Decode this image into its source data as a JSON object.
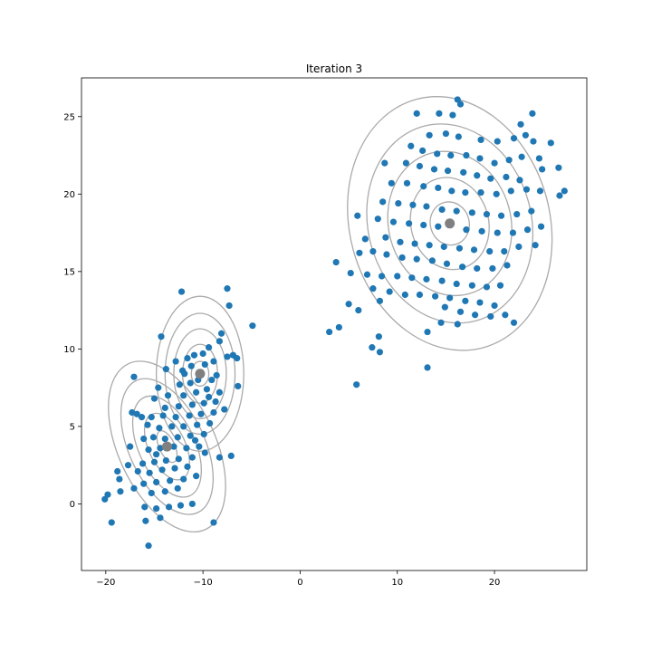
{
  "chart_data": {
    "type": "scatter",
    "title": "Iteration 3",
    "xlabel": "",
    "ylabel": "",
    "xlim": [
      -22.5,
      29.5
    ],
    "ylim": [
      -4.3,
      27.5
    ],
    "xticks": [
      -20,
      -10,
      0,
      10,
      20
    ],
    "yticks": [
      0,
      5,
      10,
      15,
      20,
      25
    ],
    "grid": false,
    "legend": "none",
    "colors": {
      "points": "#1f77b4",
      "centers": "#808080",
      "contours": "#aaaaaa"
    },
    "centers": [
      {
        "x": -10.3,
        "y": 8.4
      },
      {
        "x": -13.7,
        "y": 3.7
      },
      {
        "x": 15.4,
        "y": 18.1
      }
    ],
    "contour_sets": [
      {
        "cx": -10.3,
        "cy": 8.4,
        "rx_steps": [
          0.9,
          1.8,
          2.7,
          3.6,
          4.5
        ],
        "ry_steps": [
          0.8,
          1.9,
          2.9,
          3.9,
          5.0
        ],
        "rot_deg": 0
      },
      {
        "cx": -13.7,
        "cy": 3.7,
        "rx_steps": [
          0.8,
          1.9,
          2.9,
          3.9,
          5.0
        ],
        "ry_steps": [
          1.1,
          2.3,
          3.5,
          4.7,
          5.9
        ],
        "rot_deg": 25
      },
      {
        "cx": 15.4,
        "cy": 18.1,
        "rx_steps": [
          2.0,
          4.0,
          6.3,
          8.4,
          10.3
        ],
        "ry_steps": [
          1.4,
          3.0,
          4.7,
          6.5,
          8.3
        ],
        "rot_deg": 15
      }
    ],
    "series": [
      {
        "points": [
          [
            -7.5,
            13.9
          ],
          [
            -7.3,
            12.8
          ],
          [
            -12.2,
            13.7
          ],
          [
            -4.9,
            11.5
          ],
          [
            -14.3,
            10.8
          ],
          [
            -17.1,
            8.2
          ],
          [
            -8.1,
            11.0
          ],
          [
            -8.3,
            10.5
          ],
          [
            -9.4,
            10.1
          ],
          [
            -10.0,
            9.7
          ],
          [
            -10.9,
            9.6
          ],
          [
            -11.6,
            9.4
          ],
          [
            -12.8,
            9.2
          ],
          [
            -7.5,
            9.5
          ],
          [
            -6.9,
            9.6
          ],
          [
            -6.5,
            9.4
          ],
          [
            -8.9,
            9.2
          ],
          [
            -9.8,
            9.0
          ],
          [
            -11.2,
            8.9
          ],
          [
            -12.1,
            8.6
          ],
          [
            -13.8,
            8.7
          ],
          [
            -8.6,
            8.3
          ],
          [
            -9.1,
            8.0
          ],
          [
            -10.5,
            8.0
          ],
          [
            -11.3,
            7.8
          ],
          [
            -12.4,
            7.7
          ],
          [
            -14.6,
            7.5
          ],
          [
            -6.4,
            7.6
          ],
          [
            -8.3,
            7.2
          ],
          [
            -9.6,
            7.4
          ],
          [
            -10.7,
            7.2
          ],
          [
            -12.0,
            7.0
          ],
          [
            -13.6,
            7.0
          ],
          [
            -15.0,
            6.8
          ],
          [
            -8.7,
            6.6
          ],
          [
            -9.9,
            6.5
          ],
          [
            -11.1,
            6.4
          ],
          [
            -12.5,
            6.3
          ],
          [
            -13.9,
            6.2
          ],
          [
            -7.8,
            6.1
          ],
          [
            -8.9,
            5.9
          ],
          [
            -10.2,
            5.8
          ],
          [
            -11.4,
            5.7
          ],
          [
            -12.8,
            5.6
          ],
          [
            -14.1,
            5.7
          ],
          [
            -15.3,
            5.6
          ],
          [
            -16.3,
            5.6
          ],
          [
            -16.8,
            5.8
          ],
          [
            -17.3,
            5.9
          ],
          [
            -9.3,
            5.2
          ],
          [
            -10.6,
            5.1
          ],
          [
            -12.0,
            5.0
          ],
          [
            -13.2,
            5.0
          ],
          [
            -14.5,
            4.9
          ],
          [
            -15.7,
            5.1
          ],
          [
            -9.9,
            4.5
          ],
          [
            -11.3,
            4.4
          ],
          [
            -12.6,
            4.3
          ],
          [
            -13.9,
            4.2
          ],
          [
            -15.1,
            4.3
          ],
          [
            -16.1,
            4.2
          ],
          [
            -10.4,
            3.7
          ],
          [
            -11.7,
            3.6
          ],
          [
            -13.0,
            3.7
          ],
          [
            -14.4,
            3.6
          ],
          [
            -15.6,
            3.5
          ],
          [
            -17.5,
            3.7
          ],
          [
            -9.8,
            3.3
          ],
          [
            -11.1,
            3.0
          ],
          [
            -12.5,
            2.9
          ],
          [
            -13.8,
            2.8
          ],
          [
            -15.0,
            2.7
          ],
          [
            -16.2,
            2.6
          ],
          [
            -8.3,
            3.0
          ],
          [
            -7.1,
            3.1
          ],
          [
            -11.6,
            2.4
          ],
          [
            -12.9,
            2.3
          ],
          [
            -14.2,
            2.2
          ],
          [
            -15.5,
            2.0
          ],
          [
            -16.7,
            2.1
          ],
          [
            -17.7,
            2.5
          ],
          [
            -18.8,
            2.1
          ],
          [
            -10.7,
            1.8
          ],
          [
            -12.0,
            1.6
          ],
          [
            -13.4,
            1.5
          ],
          [
            -14.8,
            1.4
          ],
          [
            -16.1,
            1.3
          ],
          [
            -18.6,
            1.6
          ],
          [
            -12.6,
            1.0
          ],
          [
            -13.9,
            0.8
          ],
          [
            -15.3,
            0.7
          ],
          [
            -17.1,
            1.0
          ],
          [
            -18.5,
            0.8
          ],
          [
            -19.8,
            0.6
          ],
          [
            -20.1,
            0.3
          ],
          [
            -11.1,
            0.0
          ],
          [
            -12.3,
            -0.1
          ],
          [
            -13.5,
            -0.2
          ],
          [
            -14.8,
            -0.3
          ],
          [
            -16.0,
            -0.2
          ],
          [
            -15.9,
            -1.1
          ],
          [
            -14.4,
            -0.9
          ],
          [
            -19.4,
            -1.2
          ],
          [
            -8.9,
            -1.2
          ],
          [
            -15.6,
            -2.7
          ],
          [
            -11.9,
            8.4
          ],
          [
            -9.4,
            6.9
          ],
          [
            -10.8,
            4.1
          ],
          [
            -14.8,
            3.2
          ]
        ]
      },
      {
        "points": [
          [
            16.2,
            26.1
          ],
          [
            16.5,
            25.8
          ],
          [
            12.0,
            25.2
          ],
          [
            14.3,
            25.2
          ],
          [
            15.7,
            25.1
          ],
          [
            22.7,
            24.5
          ],
          [
            23.9,
            25.2
          ],
          [
            13.3,
            23.8
          ],
          [
            15.0,
            23.9
          ],
          [
            16.3,
            23.7
          ],
          [
            18.6,
            23.5
          ],
          [
            20.3,
            23.4
          ],
          [
            22.0,
            23.6
          ],
          [
            23.2,
            23.8
          ],
          [
            24.0,
            23.4
          ],
          [
            25.8,
            23.3
          ],
          [
            11.4,
            23.1
          ],
          [
            12.6,
            22.8
          ],
          [
            14.1,
            22.6
          ],
          [
            15.5,
            22.5
          ],
          [
            17.1,
            22.5
          ],
          [
            18.5,
            22.3
          ],
          [
            20.0,
            22.0
          ],
          [
            21.5,
            22.2
          ],
          [
            22.8,
            22.4
          ],
          [
            24.6,
            22.3
          ],
          [
            8.7,
            22.0
          ],
          [
            10.9,
            22.0
          ],
          [
            12.3,
            21.8
          ],
          [
            13.8,
            21.6
          ],
          [
            15.2,
            21.5
          ],
          [
            16.8,
            21.4
          ],
          [
            18.2,
            21.2
          ],
          [
            19.6,
            21.0
          ],
          [
            21.2,
            21.1
          ],
          [
            22.6,
            20.9
          ],
          [
            24.9,
            21.6
          ],
          [
            26.6,
            21.7
          ],
          [
            9.4,
            20.7
          ],
          [
            11.0,
            20.7
          ],
          [
            12.7,
            20.5
          ],
          [
            14.2,
            20.4
          ],
          [
            15.6,
            20.2
          ],
          [
            17.0,
            20.1
          ],
          [
            18.6,
            20.1
          ],
          [
            20.2,
            20.0
          ],
          [
            21.7,
            20.2
          ],
          [
            23.3,
            20.3
          ],
          [
            24.7,
            20.2
          ],
          [
            27.2,
            20.2
          ],
          [
            26.7,
            19.9
          ],
          [
            8.5,
            19.5
          ],
          [
            10.1,
            19.4
          ],
          [
            11.6,
            19.3
          ],
          [
            13.0,
            19.2
          ],
          [
            14.6,
            19.0
          ],
          [
            16.1,
            18.9
          ],
          [
            17.7,
            18.8
          ],
          [
            19.2,
            18.7
          ],
          [
            20.7,
            18.6
          ],
          [
            22.3,
            18.7
          ],
          [
            23.8,
            18.9
          ],
          [
            5.9,
            18.6
          ],
          [
            8.0,
            18.4
          ],
          [
            9.6,
            18.2
          ],
          [
            11.2,
            18.1
          ],
          [
            12.7,
            18.0
          ],
          [
            14.2,
            17.9
          ],
          [
            17.1,
            17.7
          ],
          [
            18.7,
            17.6
          ],
          [
            20.3,
            17.5
          ],
          [
            21.9,
            17.5
          ],
          [
            23.4,
            17.7
          ],
          [
            24.8,
            17.9
          ],
          [
            6.7,
            17.1
          ],
          [
            8.8,
            17.2
          ],
          [
            10.3,
            16.9
          ],
          [
            11.8,
            16.8
          ],
          [
            13.3,
            16.7
          ],
          [
            14.8,
            16.6
          ],
          [
            16.4,
            16.5
          ],
          [
            17.9,
            16.4
          ],
          [
            19.5,
            16.3
          ],
          [
            21.0,
            16.3
          ],
          [
            22.5,
            16.6
          ],
          [
            24.2,
            16.7
          ],
          [
            6.1,
            16.2
          ],
          [
            7.5,
            16.3
          ],
          [
            8.9,
            16.1
          ],
          [
            10.5,
            15.9
          ],
          [
            12.0,
            15.8
          ],
          [
            13.6,
            15.7
          ],
          [
            15.1,
            15.5
          ],
          [
            16.7,
            15.3
          ],
          [
            18.2,
            15.2
          ],
          [
            19.8,
            15.2
          ],
          [
            21.3,
            15.4
          ],
          [
            3.7,
            15.6
          ],
          [
            5.2,
            14.9
          ],
          [
            6.9,
            14.8
          ],
          [
            8.4,
            14.7
          ],
          [
            10.0,
            14.7
          ],
          [
            11.5,
            14.6
          ],
          [
            13.0,
            14.5
          ],
          [
            14.6,
            14.4
          ],
          [
            16.1,
            14.2
          ],
          [
            17.7,
            14.1
          ],
          [
            19.2,
            14.0
          ],
          [
            20.6,
            14.1
          ],
          [
            7.5,
            13.9
          ],
          [
            9.2,
            13.7
          ],
          [
            10.8,
            13.5
          ],
          [
            12.3,
            13.5
          ],
          [
            13.9,
            13.4
          ],
          [
            15.4,
            13.3
          ],
          [
            17.0,
            13.1
          ],
          [
            18.5,
            13.0
          ],
          [
            20.0,
            12.8
          ],
          [
            5.0,
            12.9
          ],
          [
            8.2,
            13.1
          ],
          [
            6.0,
            12.5
          ],
          [
            14.9,
            12.7
          ],
          [
            16.5,
            12.4
          ],
          [
            18.0,
            12.2
          ],
          [
            19.6,
            12.1
          ],
          [
            21.1,
            12.2
          ],
          [
            14.5,
            11.7
          ],
          [
            16.2,
            11.6
          ],
          [
            22.0,
            11.7
          ],
          [
            3.0,
            11.1
          ],
          [
            4.0,
            11.4
          ],
          [
            13.1,
            11.1
          ],
          [
            7.4,
            10.1
          ],
          [
            8.1,
            10.8
          ],
          [
            8.2,
            9.8
          ],
          [
            13.1,
            8.8
          ],
          [
            5.8,
            7.7
          ]
        ]
      }
    ]
  }
}
